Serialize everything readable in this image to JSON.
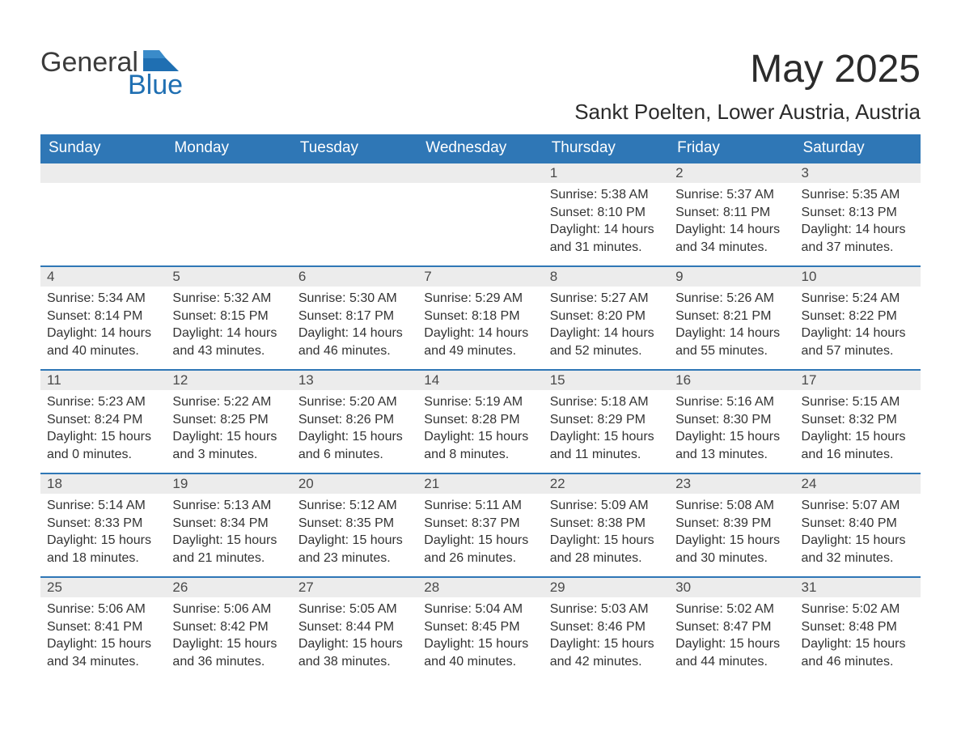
{
  "brand": {
    "name_part1": "General",
    "name_part2": "Blue",
    "text_color": "#3b3b3b",
    "accent_color": "#1f6fb2"
  },
  "title": "May 2025",
  "location": "Sankt Poelten, Lower Austria, Austria",
  "colors": {
    "header_bg": "#2f77b6",
    "header_text": "#ffffff",
    "daynum_bg": "#ececec",
    "daynum_border": "#2f77b6",
    "body_text": "#333333",
    "page_bg": "#ffffff"
  },
  "daysOfWeek": [
    "Sunday",
    "Monday",
    "Tuesday",
    "Wednesday",
    "Thursday",
    "Friday",
    "Saturday"
  ],
  "weeks": [
    [
      null,
      null,
      null,
      null,
      {
        "n": "1",
        "sr": "5:38 AM",
        "ss": "8:10 PM",
        "dh": "14",
        "dm": "31"
      },
      {
        "n": "2",
        "sr": "5:37 AM",
        "ss": "8:11 PM",
        "dh": "14",
        "dm": "34"
      },
      {
        "n": "3",
        "sr": "5:35 AM",
        "ss": "8:13 PM",
        "dh": "14",
        "dm": "37"
      }
    ],
    [
      {
        "n": "4",
        "sr": "5:34 AM",
        "ss": "8:14 PM",
        "dh": "14",
        "dm": "40"
      },
      {
        "n": "5",
        "sr": "5:32 AM",
        "ss": "8:15 PM",
        "dh": "14",
        "dm": "43"
      },
      {
        "n": "6",
        "sr": "5:30 AM",
        "ss": "8:17 PM",
        "dh": "14",
        "dm": "46"
      },
      {
        "n": "7",
        "sr": "5:29 AM",
        "ss": "8:18 PM",
        "dh": "14",
        "dm": "49"
      },
      {
        "n": "8",
        "sr": "5:27 AM",
        "ss": "8:20 PM",
        "dh": "14",
        "dm": "52"
      },
      {
        "n": "9",
        "sr": "5:26 AM",
        "ss": "8:21 PM",
        "dh": "14",
        "dm": "55"
      },
      {
        "n": "10",
        "sr": "5:24 AM",
        "ss": "8:22 PM",
        "dh": "14",
        "dm": "57"
      }
    ],
    [
      {
        "n": "11",
        "sr": "5:23 AM",
        "ss": "8:24 PM",
        "dh": "15",
        "dm": "0"
      },
      {
        "n": "12",
        "sr": "5:22 AM",
        "ss": "8:25 PM",
        "dh": "15",
        "dm": "3"
      },
      {
        "n": "13",
        "sr": "5:20 AM",
        "ss": "8:26 PM",
        "dh": "15",
        "dm": "6"
      },
      {
        "n": "14",
        "sr": "5:19 AM",
        "ss": "8:28 PM",
        "dh": "15",
        "dm": "8"
      },
      {
        "n": "15",
        "sr": "5:18 AM",
        "ss": "8:29 PM",
        "dh": "15",
        "dm": "11"
      },
      {
        "n": "16",
        "sr": "5:16 AM",
        "ss": "8:30 PM",
        "dh": "15",
        "dm": "13"
      },
      {
        "n": "17",
        "sr": "5:15 AM",
        "ss": "8:32 PM",
        "dh": "15",
        "dm": "16"
      }
    ],
    [
      {
        "n": "18",
        "sr": "5:14 AM",
        "ss": "8:33 PM",
        "dh": "15",
        "dm": "18"
      },
      {
        "n": "19",
        "sr": "5:13 AM",
        "ss": "8:34 PM",
        "dh": "15",
        "dm": "21"
      },
      {
        "n": "20",
        "sr": "5:12 AM",
        "ss": "8:35 PM",
        "dh": "15",
        "dm": "23"
      },
      {
        "n": "21",
        "sr": "5:11 AM",
        "ss": "8:37 PM",
        "dh": "15",
        "dm": "26"
      },
      {
        "n": "22",
        "sr": "5:09 AM",
        "ss": "8:38 PM",
        "dh": "15",
        "dm": "28"
      },
      {
        "n": "23",
        "sr": "5:08 AM",
        "ss": "8:39 PM",
        "dh": "15",
        "dm": "30"
      },
      {
        "n": "24",
        "sr": "5:07 AM",
        "ss": "8:40 PM",
        "dh": "15",
        "dm": "32"
      }
    ],
    [
      {
        "n": "25",
        "sr": "5:06 AM",
        "ss": "8:41 PM",
        "dh": "15",
        "dm": "34"
      },
      {
        "n": "26",
        "sr": "5:06 AM",
        "ss": "8:42 PM",
        "dh": "15",
        "dm": "36"
      },
      {
        "n": "27",
        "sr": "5:05 AM",
        "ss": "8:44 PM",
        "dh": "15",
        "dm": "38"
      },
      {
        "n": "28",
        "sr": "5:04 AM",
        "ss": "8:45 PM",
        "dh": "15",
        "dm": "40"
      },
      {
        "n": "29",
        "sr": "5:03 AM",
        "ss": "8:46 PM",
        "dh": "15",
        "dm": "42"
      },
      {
        "n": "30",
        "sr": "5:02 AM",
        "ss": "8:47 PM",
        "dh": "15",
        "dm": "44"
      },
      {
        "n": "31",
        "sr": "5:02 AM",
        "ss": "8:48 PM",
        "dh": "15",
        "dm": "46"
      }
    ]
  ],
  "labels": {
    "sunrise": "Sunrise: ",
    "sunset": "Sunset: ",
    "daylight_prefix": "Daylight: ",
    "hours_word": " hours",
    "and_word": "and ",
    "minutes_word": " minutes."
  }
}
